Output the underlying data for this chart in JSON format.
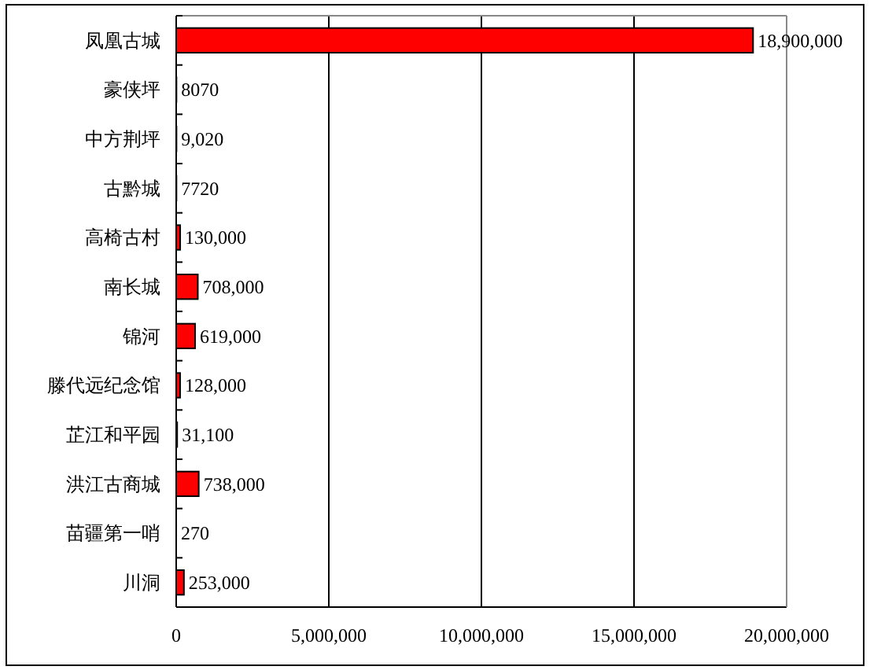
{
  "chart_data": {
    "type": "bar",
    "orientation": "horizontal",
    "categories": [
      "凤凰古城",
      "豪侠坪",
      "中方荆坪",
      "古黔城",
      "高椅古村",
      "南长城",
      "锦河",
      "滕代远纪念馆",
      "芷江和平园",
      "洪江古商城",
      "苗疆第一哨",
      "川洞"
    ],
    "values": [
      18900000,
      8070,
      9020,
      7720,
      130000,
      708000,
      619000,
      128000,
      31100,
      738000,
      270,
      253000
    ],
    "value_labels": [
      "18,900,000",
      "8070",
      "9,020",
      "7720",
      "130,000",
      "708,000",
      "619,000",
      "128,000",
      "31,100",
      "738,000",
      "270",
      "253,000"
    ],
    "color": "#ff0000",
    "xlim": [
      0,
      20000000
    ],
    "xticks": [
      0,
      {
        "value": 5000000,
        "label": "5,000,000"
      },
      {
        "value": 10000000,
        "label": "10,000,000"
      },
      {
        "value": 15000000,
        "label": "15,000,000"
      },
      {
        "value": 20000000,
        "label": "20,000,000"
      }
    ],
    "grid": "x"
  }
}
